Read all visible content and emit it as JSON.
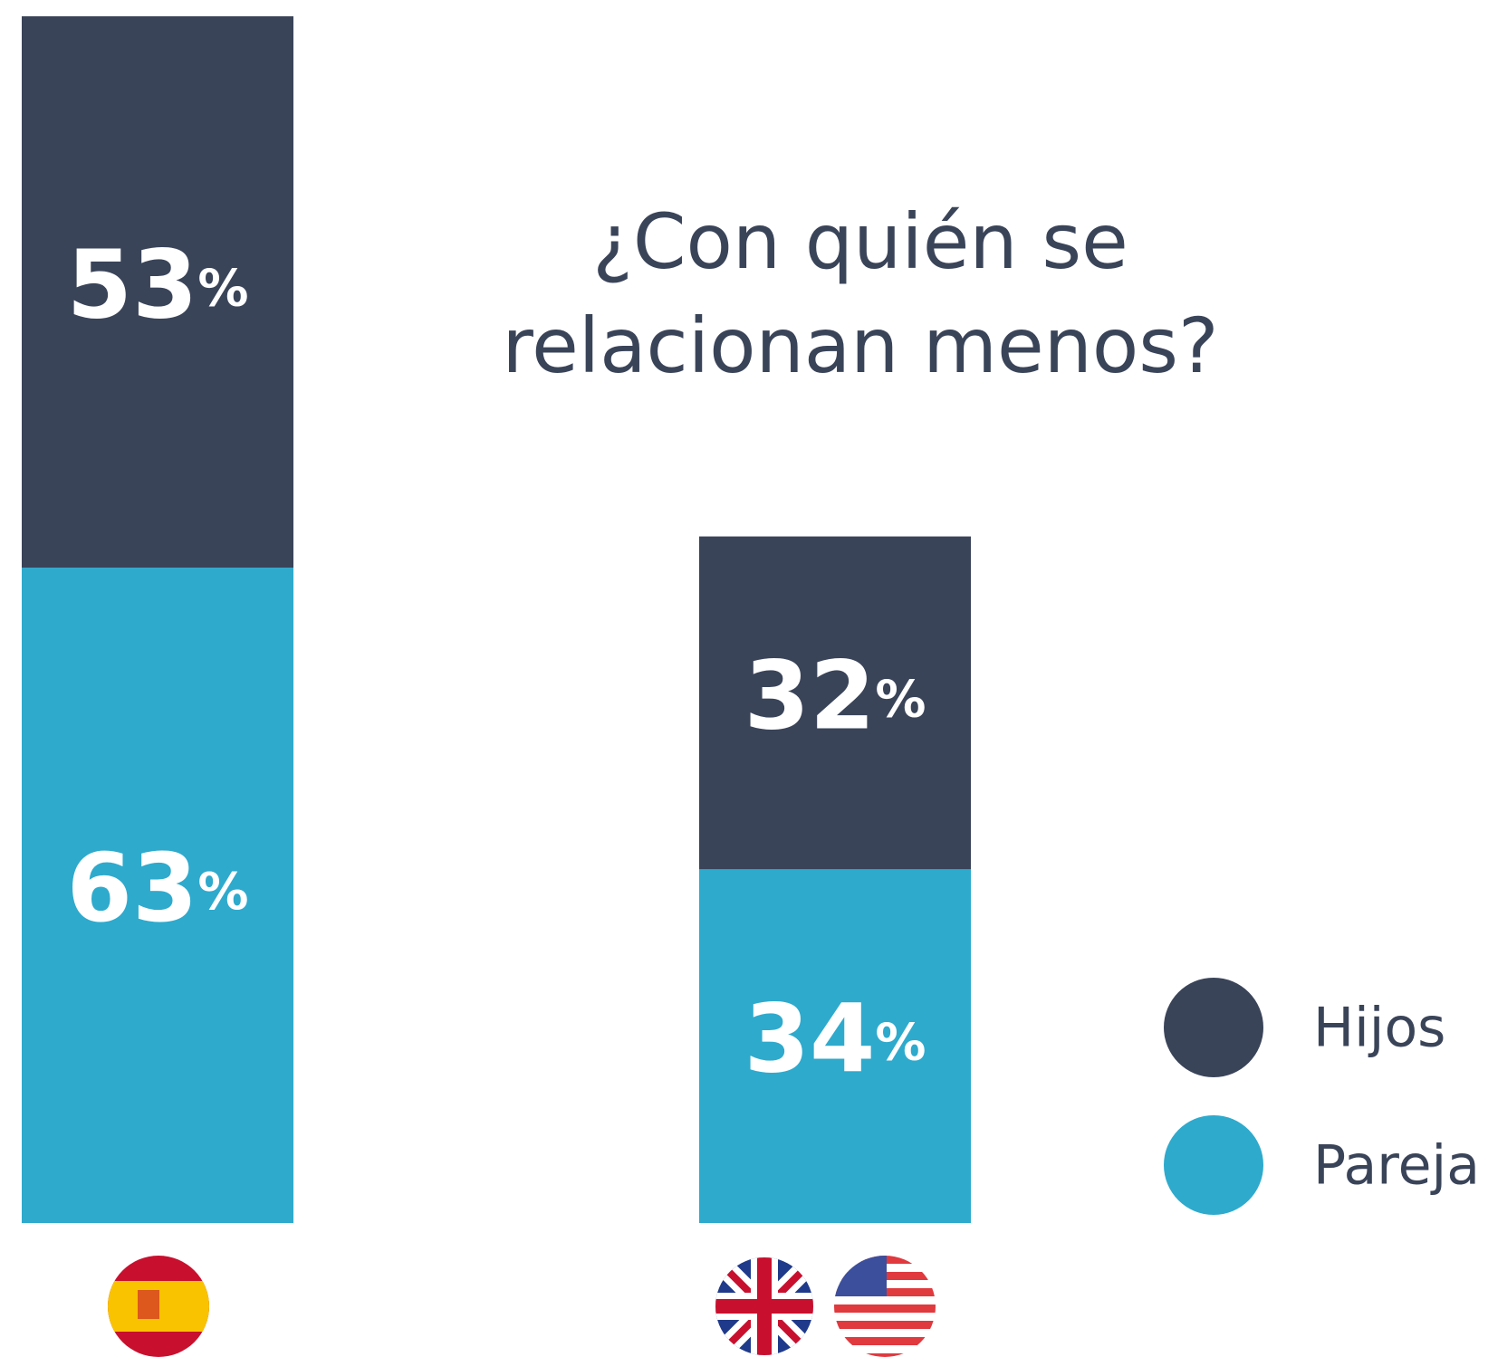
{
  "chart_data": {
    "type": "stacked_bar",
    "title": [
      "¿Con quién se",
      "relacionan menos?"
    ],
    "categories": [
      null,
      null
    ],
    "series": [
      {
        "name": "Hijos",
        "color": "#3a4459",
        "values": [
          53,
          32
        ],
        "value_labels": [
          "53%",
          "32%"
        ]
      },
      {
        "name": "Pareja",
        "color": "#2eaacd",
        "values": [
          63,
          34
        ],
        "value_labels": [
          "63%",
          "34%"
        ]
      }
    ]
  }
}
